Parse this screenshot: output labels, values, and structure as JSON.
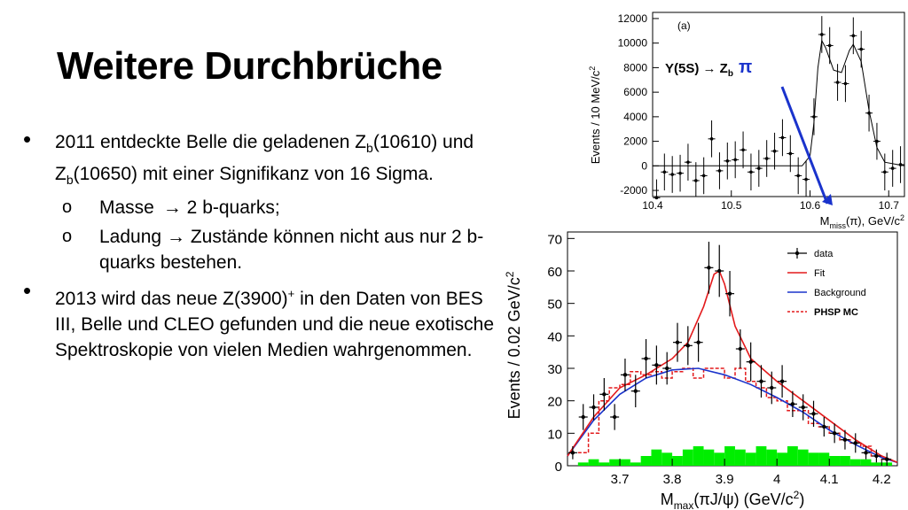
{
  "slide": {
    "title": "Weitere Durchbrüche",
    "bullet1": {
      "text_a": "2011 entdeckte Belle die geladenen Z",
      "sub_b1": "b",
      "text_b": "(10610) und Z",
      "sub_b2": "b",
      "text_c": "(10650) mit einer Signifikanz von 16 Sigma."
    },
    "sub1": {
      "label": "Masse",
      "text": "→ 2 b-quarks;"
    },
    "sub2": {
      "label": "Ladung",
      "text": "→ Zustände können nicht aus nur 2 b-quarks bestehen."
    },
    "bullet2": {
      "text_a": "2013 wird das neue Z(3900)",
      "sup": "+",
      "text_b": " in den Daten von BES III, Belle und CLEO gefunden und die neue exotische Spektroskopie von vielen Medien wahrgenommen."
    },
    "bullet_symbol": "•",
    "sub_symbol": "o"
  },
  "chart_data": [
    {
      "type": "scatter",
      "panel_label": "(a)",
      "annotation": "Y(5S) → Z",
      "annotation_sub": "b",
      "annotation_pi": "π",
      "arrow_color": "#1a33cc",
      "ylabel": "Events / 10 MeV/c",
      "ylabel_sup": "2",
      "xlabel_a": "M",
      "xlabel_sub": "miss",
      "xlabel_b": "(π), GeV/c",
      "xlabel_sup": "2",
      "xlim": [
        10.4,
        10.72
      ],
      "ylim": [
        -2500,
        12500
      ],
      "xticks": [
        "10.4",
        "10.5",
        "10.6",
        "10.7"
      ],
      "yticks": [
        "-2000",
        "0",
        "2000",
        "4000",
        "6000",
        "8000",
        "10000",
        "12000"
      ],
      "points": [
        [
          10.405,
          -2600
        ],
        [
          10.415,
          -500
        ],
        [
          10.425,
          -700
        ],
        [
          10.435,
          -600
        ],
        [
          10.445,
          300
        ],
        [
          10.455,
          -1200
        ],
        [
          10.465,
          -800
        ],
        [
          10.475,
          2200
        ],
        [
          10.485,
          -400
        ],
        [
          10.495,
          400
        ],
        [
          10.505,
          500
        ],
        [
          10.515,
          1300
        ],
        [
          10.525,
          -500
        ],
        [
          10.535,
          -200
        ],
        [
          10.545,
          600
        ],
        [
          10.555,
          1200
        ],
        [
          10.565,
          2300
        ],
        [
          10.575,
          1000
        ],
        [
          10.585,
          -800
        ],
        [
          10.595,
          -1100
        ],
        [
          10.605,
          4000
        ],
        [
          10.615,
          10700
        ],
        [
          10.625,
          9800
        ],
        [
          10.635,
          6800
        ],
        [
          10.645,
          6700
        ],
        [
          10.655,
          10600
        ],
        [
          10.665,
          9500
        ],
        [
          10.675,
          4300
        ],
        [
          10.685,
          2000
        ],
        [
          10.695,
          -500
        ],
        [
          10.705,
          -200
        ],
        [
          10.715,
          100
        ]
      ],
      "fit": [
        [
          10.4,
          0
        ],
        [
          10.59,
          0
        ],
        [
          10.6,
          800
        ],
        [
          10.605,
          3500
        ],
        [
          10.61,
          8000
        ],
        [
          10.615,
          10200
        ],
        [
          10.62,
          9600
        ],
        [
          10.63,
          7800
        ],
        [
          10.64,
          7600
        ],
        [
          10.65,
          9400
        ],
        [
          10.655,
          9900
        ],
        [
          10.665,
          8500
        ],
        [
          10.675,
          4500
        ],
        [
          10.685,
          1500
        ],
        [
          10.695,
          300
        ],
        [
          10.72,
          0
        ]
      ]
    },
    {
      "type": "line",
      "ylabel": "Events / 0.02 GeV/c",
      "ylabel_sup": "2",
      "xlabel_a": "M",
      "xlabel_sub": "max",
      "xlabel_b": "(πJ/ψ) (GeV/c",
      "xlabel_sup": "2",
      "xlabel_c": ")",
      "xlim": [
        3.6,
        4.23
      ],
      "ylim": [
        0,
        72
      ],
      "xticks": [
        "3.7",
        "3.8",
        "3.9",
        "4",
        "4.1",
        "4.2"
      ],
      "yticks": [
        "0",
        "10",
        "20",
        "30",
        "40",
        "50",
        "60",
        "70"
      ],
      "legend": [
        {
          "name": "data",
          "color": "#000000"
        },
        {
          "name": "Fit",
          "color": "#e31a1c"
        },
        {
          "name": "Background",
          "color": "#1a33cc"
        },
        {
          "name": "PHSP MC",
          "color": "#e31a1c"
        }
      ],
      "data_x": [
        3.61,
        3.63,
        3.65,
        3.67,
        3.69,
        3.71,
        3.73,
        3.75,
        3.77,
        3.79,
        3.81,
        3.83,
        3.85,
        3.87,
        3.89,
        3.91,
        3.93,
        3.95,
        3.97,
        3.99,
        4.01,
        4.03,
        4.05,
        4.07,
        4.09,
        4.11,
        4.13,
        4.15,
        4.17,
        4.19,
        4.21
      ],
      "data_y": [
        4,
        15,
        18,
        22,
        15,
        28,
        23,
        33,
        31,
        30,
        38,
        37,
        38,
        61,
        60,
        53,
        36,
        32,
        26,
        24,
        26,
        19,
        18,
        16,
        12,
        10,
        8,
        7,
        4,
        3,
        2
      ],
      "data_err": [
        2,
        4,
        4,
        5,
        4,
        5,
        5,
        6,
        6,
        5,
        6,
        6,
        6,
        8,
        8,
        7,
        6,
        6,
        5,
        5,
        5,
        4,
        4,
        4,
        3,
        3,
        3,
        3,
        2,
        2,
        2
      ],
      "fit_x": [
        3.6,
        3.65,
        3.7,
        3.75,
        3.8,
        3.83,
        3.86,
        3.88,
        3.89,
        3.9,
        3.92,
        3.95,
        4.0,
        4.05,
        4.1,
        4.15,
        4.2,
        4.23
      ],
      "fit_y": [
        3,
        15,
        24,
        28,
        33,
        38,
        49,
        59,
        60,
        56,
        43,
        33,
        26,
        20,
        14,
        8,
        3,
        1
      ],
      "bkg_x": [
        3.6,
        3.65,
        3.7,
        3.75,
        3.8,
        3.85,
        3.9,
        3.95,
        4.0,
        4.05,
        4.1,
        4.15,
        4.2,
        4.23
      ],
      "bkg_y": [
        3,
        14,
        22,
        27,
        29.5,
        30,
        28,
        25,
        21,
        16.5,
        11,
        6.5,
        2.5,
        1
      ],
      "phsp_y": [
        4,
        10,
        20,
        24,
        25,
        29,
        28,
        29,
        27,
        29,
        30,
        27,
        30,
        30,
        27,
        30,
        26,
        24,
        21,
        20,
        17,
        17,
        13,
        12,
        10,
        8,
        7,
        6,
        3,
        2
      ],
      "green_y": [
        1,
        2,
        1,
        2,
        2,
        1,
        3,
        5,
        4,
        3,
        5,
        6,
        5,
        4,
        6,
        5,
        4,
        6,
        5,
        4,
        6,
        5,
        4,
        4,
        3,
        3,
        2,
        2,
        1,
        1
      ],
      "green_color": "#00ee00"
    }
  ]
}
